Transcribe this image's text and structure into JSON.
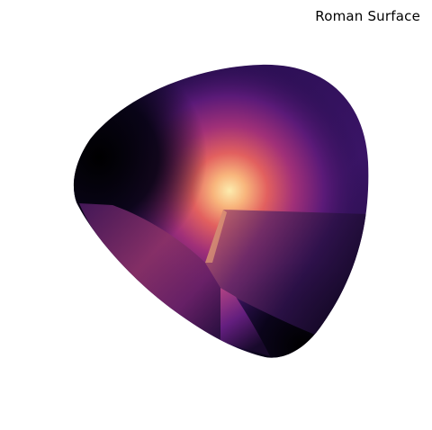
{
  "title": "Roman Surface",
  "colors": {
    "background": "#ffffff",
    "dark": "#000004",
    "deep_purple": "#2c115f",
    "purple": "#721f81",
    "magenta": "#b73779",
    "coral": "#f1605d",
    "peach": "#feb078",
    "pale": "#fcfdbf"
  }
}
